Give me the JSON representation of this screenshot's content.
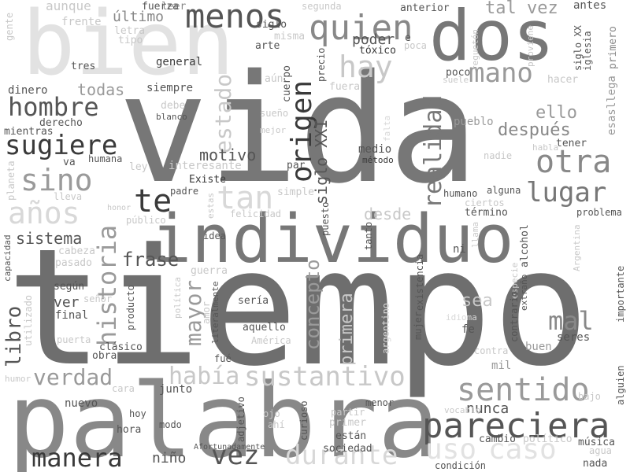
{
  "words": {
    "tiempo": "tiempo",
    "vida": "vida",
    "palabra": "palabra",
    "individuo": "individuo",
    "bien": "bien",
    "dos": "dos",
    "menos": "menos",
    "quien": "quien",
    "hay": "hay",
    "mano": "mano",
    "hombre": "hombre",
    "sugiere": "sugiere",
    "sino": "sino",
    "anos": "años",
    "te": "te",
    "tan": "tan",
    "origen": "origen",
    "siglo_xxi": "siglo XXI",
    "realidad": "realidad",
    "otra": "otra",
    "lugar": "lugar",
    "despues": "después",
    "ello": "ello",
    "historia": "historia",
    "estado": "estado",
    "motivo": "motivo",
    "sistema": "sistema",
    "frase": "frase",
    "libro": "libro",
    "mayor": "mayor",
    "verdad": "verdad",
    "habia": "había",
    "sustantivo": "sustantivo",
    "sentido": "sentido",
    "pareciera": "pareciera",
    "manera": "manera",
    "vez": "vez",
    "durante": "durante",
    "mal": "mal",
    "uso": "uso",
    "caso": "caso",
    "nunca": "nunca",
    "concepto": "concepto",
    "primera": "primera",
    "sea": "sea",
    "desde": "desde",
    "aunque": "aunque",
    "frente": "frente",
    "gente": "gente",
    "ultimo": "último",
    "leer": "leer",
    "letra": "letra",
    "tipo": "tipo",
    "fuerza": "fuerza",
    "misma": "misma",
    "siglo": "siglo",
    "segunda": "segunda",
    "anterior": "anterior",
    "tal_vez": "tal vez",
    "antes": "antes",
    "arte": "arte",
    "poder": "poder",
    "e": "e",
    "toxico": "tóxico",
    "poca": "poca",
    "regueton": "reguetón",
    "proviene": "proviene",
    "siglo_xx": "siglo XX",
    "iglesia": "iglesia",
    "primero": "primero",
    "tres": "tres",
    "general": "general",
    "aun": "aún",
    "precio": "precio",
    "poco": "poco",
    "suele": "suele",
    "hacer": "hacer",
    "dinero": "dinero",
    "todas": "todas",
    "siempre": "siempre",
    "cuerpo": "cuerpo",
    "fuera": "fuera",
    "debe": "debe",
    "blanco": "blanco",
    "sueno": "sueño",
    "derecho": "derecho",
    "pueblo": "pueblo",
    "esasllega": "esasllega",
    "mientras": "mientras",
    "mejor": "mejor",
    "falta": "falta",
    "habla": "habla",
    "tener": "tener",
    "va": "va",
    "humana": "humana",
    "ley": "ley",
    "interesante": "interesante",
    "par": "par",
    "metodo": "método",
    "medio": "medio",
    "nadie": "nadie",
    "planeta": "planeta",
    "lleva": "lleva",
    "padre": "padre",
    "existe": "Existe",
    "simple": "simple",
    "humano": "humano",
    "alguna": "alguna",
    "ciertos": "ciertos",
    "honor": "honor",
    "estas": "estas",
    "felicidad": "felicidad",
    "termino": "término",
    "problema": "problema",
    "publico": "público",
    "puesto": "puesto",
    "argentina": "Argentina",
    "capacidad": "capacidad",
    "idea": "idea",
    "tanto": "tanto",
    "ni": "ni",
    "llama": "llama",
    "alcohol": "alcohol",
    "cabeza": "cabeza",
    "pasado": "pasado",
    "guerra": "guerra",
    "especie": "especie",
    "extrano": "extraño",
    "argentino": "argentino",
    "segun": "según",
    "utilizado": "utilizado",
    "politica": "política",
    "existencia": "existencia",
    "ver": "ver",
    "senor": "señor",
    "seria": "sería",
    "literalmente": "literalmente",
    "final": "final",
    "producto": "producto",
    "amor": "amor",
    "aquello": "aquello",
    "idioma": "idioma",
    "importante": "importante",
    "puerta": "puerta",
    "clasico": "clásico",
    "america": "América",
    "mujer": "mujer",
    "contrario": "contrario",
    "fe": "fe",
    "seres": "seres",
    "obra": "obra",
    "fue": "fué",
    "contra": "contra",
    "mil": "mil",
    "buen": "buen",
    "humor": "humor",
    "cara": "cara",
    "junto": "junto",
    "alguien": "alguien",
    "nuevo": "nuevo",
    "hoy": "hoy",
    "ojo": "ojo",
    "curioso": "curioso",
    "partir": "partir",
    "menor": "menor",
    "vocablo": "vocablo",
    "primer": "primer",
    "hora": "hora",
    "modo": "modo",
    "adjetivo": "adjetivo",
    "ahi": "ahí",
    "estan": "están",
    "cambio": "cambio",
    "politico": "político",
    "musica": "música",
    "agua": "agua",
    "nino": "niño",
    "afortunadamente": "Afortunadamente",
    "sociedad": "sociedad",
    "condicion": "condición",
    "nada": "nada",
    "bajo": "bajo"
  }
}
